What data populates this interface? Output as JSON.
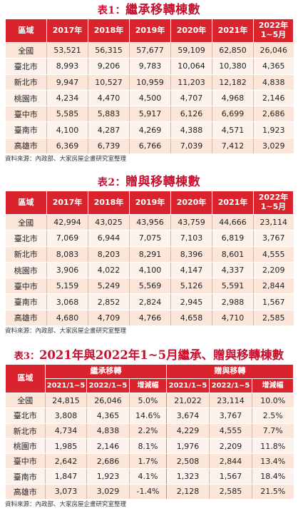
{
  "table1": {
    "label": "表1：",
    "title": "繼承移轉棟數",
    "headers": [
      "區域",
      "2017年",
      "2018年",
      "2019年",
      "2020年",
      "2021年",
      "2022年",
      "1~5月"
    ],
    "rows": [
      [
        "全國",
        "53,521",
        "56,315",
        "57,677",
        "59,109",
        "62,850",
        "26,046"
      ],
      [
        "臺北市",
        "8,993",
        "9,206",
        "9,783",
        "10,064",
        "10,380",
        "4,365"
      ],
      [
        "新北市",
        "9,947",
        "10,527",
        "10,959",
        "11,203",
        "12,182",
        "4,838"
      ],
      [
        "桃園市",
        "4,234",
        "4,470",
        "4,500",
        "4,707",
        "4,968",
        "2,146"
      ],
      [
        "臺中市",
        "5,585",
        "5,883",
        "5,917",
        "6,126",
        "6,699",
        "2,686"
      ],
      [
        "臺南市",
        "4,100",
        "4,287",
        "4,269",
        "4,388",
        "4,571",
        "1,923"
      ],
      [
        "高雄市",
        "6,369",
        "6,739",
        "6,766",
        "7,039",
        "7,412",
        "3,029"
      ]
    ],
    "source": "資料來源：內政部、大家房屋企畫研究室整理"
  },
  "table2": {
    "label": "表2：",
    "title": "贈與移轉棟數",
    "headers": [
      "區域",
      "2017年",
      "2018年",
      "2019年",
      "2020年",
      "2021年",
      "2022年",
      "1~5月"
    ],
    "rows": [
      [
        "全國",
        "42,994",
        "43,025",
        "43,956",
        "43,759",
        "44,666",
        "23,114"
      ],
      [
        "臺北市",
        "7,069",
        "6,944",
        "7,075",
        "7,103",
        "6,819",
        "3,767"
      ],
      [
        "新北市",
        "8,083",
        "8,203",
        "8,291",
        "8,396",
        "8,601",
        "4,555"
      ],
      [
        "桃園市",
        "3,906",
        "4,022",
        "4,100",
        "4,147",
        "4,337",
        "2,209"
      ],
      [
        "臺中市",
        "5,159",
        "5,249",
        "5,569",
        "5,126",
        "5,591",
        "2,844"
      ],
      [
        "臺南市",
        "3,068",
        "2,852",
        "2,824",
        "2,945",
        "2,988",
        "1,567"
      ],
      [
        "高雄市",
        "4,680",
        "4,709",
        "4,766",
        "4,658",
        "4,710",
        "2,585"
      ]
    ],
    "source": "資料來源：內政部、大家房屋企畫研究室整理"
  },
  "table3": {
    "label": "表3：",
    "title": "2021年與2022年1~5月繼承、贈與移轉棟數",
    "region_header": "區域",
    "group_inherit": "繼承移轉",
    "group_gift": "贈與移轉",
    "subheaders": [
      "2021/1~5",
      "2022/1~5",
      "增減幅",
      "2021/1~5",
      "2022/1~5",
      "增減幅"
    ],
    "rows": [
      [
        "全國",
        "24,815",
        "26,046",
        "5.0%",
        "21,022",
        "23,114",
        "10.0%"
      ],
      [
        "臺北市",
        "3,808",
        "4,365",
        "14.6%",
        "3,674",
        "3,767",
        "2.5%"
      ],
      [
        "新北市",
        "4,734",
        "4,838",
        "2.2%",
        "4,229",
        "4,555",
        "7.7%"
      ],
      [
        "桃園市",
        "1,985",
        "2,146",
        "8.1%",
        "1,976",
        "2,209",
        "11.8%"
      ],
      [
        "臺中市",
        "2,642",
        "2,686",
        "1.7%",
        "2,508",
        "2,844",
        "13.4%"
      ],
      [
        "臺南市",
        "1,847",
        "1,923",
        "4.1%",
        "1,323",
        "1,567",
        "18.4%"
      ],
      [
        "高雄市",
        "3,073",
        "3,029",
        "-1.4%",
        "2,128",
        "2,585",
        "21.5%"
      ]
    ],
    "source": "資料來源：內政部、大家房屋企畫研究室整理"
  }
}
